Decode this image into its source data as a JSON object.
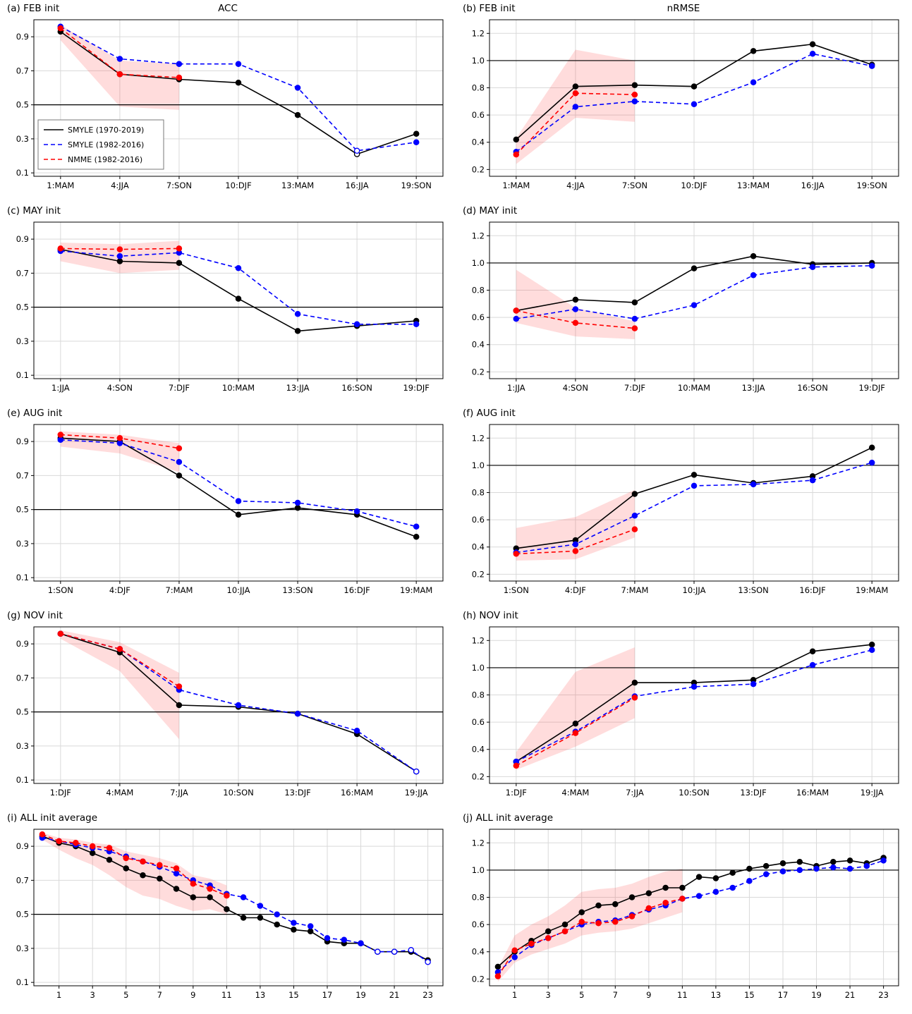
{
  "figure": {
    "col_titles": [
      "ACC",
      "nRMSE"
    ],
    "colors": {
      "smyle_long": "#000000",
      "smyle_short": "#0000ff",
      "nmme": "#ff0000",
      "band": "rgba(255,60,60,0.18)",
      "grid": "#d9d9d9",
      "ref": "#000000"
    },
    "legend": [
      {
        "label": "SMYLE (1970-2019)",
        "color": "#000000",
        "dash": "solid"
      },
      {
        "label": "SMYLE (1982-2016)",
        "color": "#0000ff",
        "dash": "dashed"
      },
      {
        "label": "NMME (1982-2016)",
        "color": "#ff0000",
        "dash": "dashed"
      }
    ]
  },
  "chart_data": [
    {
      "id": "a",
      "label": "(a) FEB init",
      "title": "ACC",
      "type": "line",
      "show_legend": true,
      "categories": [
        "1:MAM",
        "4:JJA",
        "7:SON",
        "10:DJF",
        "13:MAM",
        "16:JJA",
        "19:SON"
      ],
      "ylim": [
        0.08,
        1.0
      ],
      "yticks": [
        0.1,
        0.3,
        0.5,
        0.7,
        0.9
      ],
      "ref_line": 0.5,
      "series": [
        {
          "name": "SMYLE (1970-2019)",
          "color": "#000000",
          "dash": "solid",
          "values": [
            0.93,
            0.68,
            0.65,
            0.63,
            0.44,
            0.21,
            0.33
          ],
          "open": [
            5
          ]
        },
        {
          "name": "SMYLE (1982-2016)",
          "color": "#0000ff",
          "dash": "dashed",
          "values": [
            0.96,
            0.77,
            0.74,
            0.74,
            0.6,
            0.23,
            0.28
          ],
          "open": [
            5
          ]
        },
        {
          "name": "NMME (1982-2016)",
          "color": "#ff0000",
          "dash": "dashed",
          "values": [
            0.95,
            0.68,
            0.66
          ]
        }
      ],
      "band": {
        "upper": [
          0.97,
          0.76,
          0.74
        ],
        "lower": [
          0.88,
          0.49,
          0.47
        ]
      }
    },
    {
      "id": "b",
      "label": "(b) FEB init",
      "title": "nRMSE",
      "type": "line",
      "categories": [
        "1:MAM",
        "4:JJA",
        "7:SON",
        "10:DJF",
        "13:MAM",
        "16:JJA",
        "19:SON"
      ],
      "ylim": [
        0.15,
        1.3
      ],
      "yticks": [
        0.2,
        0.4,
        0.6,
        0.8,
        1.0,
        1.2
      ],
      "ref_line": 1.0,
      "series": [
        {
          "name": "SMYLE (1970-2019)",
          "color": "#000000",
          "dash": "solid",
          "values": [
            0.42,
            0.81,
            0.82,
            0.81,
            1.07,
            1.12,
            0.97
          ]
        },
        {
          "name": "SMYLE (1982-2016)",
          "color": "#0000ff",
          "dash": "dashed",
          "values": [
            0.33,
            0.66,
            0.7,
            0.68,
            0.84,
            1.05,
            0.96
          ]
        },
        {
          "name": "NMME (1982-2016)",
          "color": "#ff0000",
          "dash": "dashed",
          "values": [
            0.31,
            0.76,
            0.75
          ]
        }
      ],
      "band": {
        "upper": [
          0.43,
          1.08,
          1.0
        ],
        "lower": [
          0.24,
          0.58,
          0.55
        ]
      }
    },
    {
      "id": "c",
      "label": "(c) MAY init",
      "type": "line",
      "categories": [
        "1:JJA",
        "4:SON",
        "7:DJF",
        "10:MAM",
        "13:JJA",
        "16:SON",
        "19:DJF"
      ],
      "ylim": [
        0.08,
        1.0
      ],
      "yticks": [
        0.1,
        0.3,
        0.5,
        0.7,
        0.9
      ],
      "ref_line": 0.5,
      "series": [
        {
          "name": "SMYLE (1970-2019)",
          "color": "#000000",
          "dash": "solid",
          "values": [
            0.84,
            0.77,
            0.76,
            0.55,
            0.36,
            0.39,
            0.42
          ]
        },
        {
          "name": "SMYLE (1982-2016)",
          "color": "#0000ff",
          "dash": "dashed",
          "values": [
            0.83,
            0.8,
            0.82,
            0.73,
            0.46,
            0.4,
            0.4
          ]
        },
        {
          "name": "NMME (1982-2016)",
          "color": "#ff0000",
          "dash": "dashed",
          "values": [
            0.845,
            0.84,
            0.845
          ]
        }
      ],
      "band": {
        "upper": [
          0.88,
          0.87,
          0.89
        ],
        "lower": [
          0.77,
          0.7,
          0.72
        ]
      }
    },
    {
      "id": "d",
      "label": "(d) MAY init",
      "type": "line",
      "categories": [
        "1:JJA",
        "4:SON",
        "7:DJF",
        "10:MAM",
        "13:JJA",
        "16:SON",
        "19:DJF"
      ],
      "ylim": [
        0.15,
        1.3
      ],
      "yticks": [
        0.2,
        0.4,
        0.6,
        0.8,
        1.0,
        1.2
      ],
      "ref_line": 1.0,
      "series": [
        {
          "name": "SMYLE (1970-2019)",
          "color": "#000000",
          "dash": "solid",
          "values": [
            0.65,
            0.73,
            0.71,
            0.96,
            1.05,
            0.99,
            1.0
          ]
        },
        {
          "name": "SMYLE (1982-2016)",
          "color": "#0000ff",
          "dash": "dashed",
          "values": [
            0.59,
            0.66,
            0.59,
            0.69,
            0.91,
            0.97,
            0.98
          ]
        },
        {
          "name": "NMME (1982-2016)",
          "color": "#ff0000",
          "dash": "dashed",
          "values": [
            0.65,
            0.56,
            0.52
          ]
        }
      ],
      "band": {
        "upper": [
          0.95,
          0.67,
          0.57
        ],
        "lower": [
          0.56,
          0.46,
          0.44
        ]
      }
    },
    {
      "id": "e",
      "label": "(e) AUG init",
      "type": "line",
      "categories": [
        "1:SON",
        "4:DJF",
        "7:MAM",
        "10:JJA",
        "13:SON",
        "16:DJF",
        "19:MAM"
      ],
      "ylim": [
        0.08,
        1.0
      ],
      "yticks": [
        0.1,
        0.3,
        0.5,
        0.7,
        0.9
      ],
      "ref_line": 0.5,
      "series": [
        {
          "name": "SMYLE (1970-2019)",
          "color": "#000000",
          "dash": "solid",
          "values": [
            0.92,
            0.9,
            0.7,
            0.47,
            0.51,
            0.47,
            0.34
          ]
        },
        {
          "name": "SMYLE (1982-2016)",
          "color": "#0000ff",
          "dash": "dashed",
          "values": [
            0.91,
            0.89,
            0.78,
            0.55,
            0.54,
            0.49,
            0.4
          ]
        },
        {
          "name": "NMME (1982-2016)",
          "color": "#ff0000",
          "dash": "dashed",
          "values": [
            0.94,
            0.92,
            0.86
          ]
        }
      ],
      "band": {
        "upper": [
          0.96,
          0.94,
          0.89
        ],
        "lower": [
          0.87,
          0.83,
          0.72
        ]
      }
    },
    {
      "id": "f",
      "label": "(f) AUG init",
      "type": "line",
      "categories": [
        "1:SON",
        "4:DJF",
        "7:MAM",
        "10:JJA",
        "13:SON",
        "16:DJF",
        "19:MAM"
      ],
      "ylim": [
        0.15,
        1.3
      ],
      "yticks": [
        0.2,
        0.4,
        0.6,
        0.8,
        1.0,
        1.2
      ],
      "ref_line": 1.0,
      "series": [
        {
          "name": "SMYLE (1970-2019)",
          "color": "#000000",
          "dash": "solid",
          "values": [
            0.39,
            0.45,
            0.79,
            0.93,
            0.87,
            0.92,
            1.13
          ]
        },
        {
          "name": "SMYLE (1982-2016)",
          "color": "#0000ff",
          "dash": "dashed",
          "values": [
            0.36,
            0.42,
            0.63,
            0.85,
            0.86,
            0.89,
            1.02
          ]
        },
        {
          "name": "NMME (1982-2016)",
          "color": "#ff0000",
          "dash": "dashed",
          "values": [
            0.35,
            0.37,
            0.53
          ]
        }
      ],
      "band": {
        "upper": [
          0.54,
          0.62,
          0.82
        ],
        "lower": [
          0.3,
          0.31,
          0.47
        ]
      }
    },
    {
      "id": "g",
      "label": "(g) NOV init",
      "type": "line",
      "categories": [
        "1:DJF",
        "4:MAM",
        "7:JJA",
        "10:SON",
        "13:DJF",
        "16:MAM",
        "19:JJA"
      ],
      "ylim": [
        0.08,
        1.0
      ],
      "yticks": [
        0.1,
        0.3,
        0.5,
        0.7,
        0.9
      ],
      "ref_line": 0.5,
      "series": [
        {
          "name": "SMYLE (1970-2019)",
          "color": "#000000",
          "dash": "solid",
          "values": [
            0.96,
            0.85,
            0.54,
            0.53,
            0.49,
            0.37,
            0.15
          ],
          "open": [
            6
          ]
        },
        {
          "name": "SMYLE (1982-2016)",
          "color": "#0000ff",
          "dash": "dashed",
          "values": [
            0.96,
            0.87,
            0.63,
            0.54,
            0.49,
            0.39,
            0.15
          ],
          "open": [
            6
          ]
        },
        {
          "name": "NMME (1982-2016)",
          "color": "#ff0000",
          "dash": "dashed",
          "values": [
            0.96,
            0.87,
            0.65
          ]
        }
      ],
      "band": {
        "upper": [
          0.98,
          0.91,
          0.73
        ],
        "lower": [
          0.93,
          0.74,
          0.34
        ]
      }
    },
    {
      "id": "h",
      "label": "(h) NOV init",
      "type": "line",
      "categories": [
        "1:DJF",
        "4:MAM",
        "7:JJA",
        "10:SON",
        "13:DJF",
        "16:MAM",
        "19:JJA"
      ],
      "ylim": [
        0.15,
        1.3
      ],
      "yticks": [
        0.2,
        0.4,
        0.6,
        0.8,
        1.0,
        1.2
      ],
      "ref_line": 1.0,
      "series": [
        {
          "name": "SMYLE (1970-2019)",
          "color": "#000000",
          "dash": "solid",
          "values": [
            0.31,
            0.59,
            0.89,
            0.89,
            0.91,
            1.12,
            1.17
          ]
        },
        {
          "name": "SMYLE (1982-2016)",
          "color": "#0000ff",
          "dash": "dashed",
          "values": [
            0.31,
            0.53,
            0.79,
            0.86,
            0.88,
            1.02,
            1.13
          ]
        },
        {
          "name": "NMME (1982-2016)",
          "color": "#ff0000",
          "dash": "dashed",
          "values": [
            0.28,
            0.52,
            0.78
          ]
        }
      ],
      "band": {
        "upper": [
          0.38,
          0.97,
          1.15
        ],
        "lower": [
          0.25,
          0.42,
          0.63
        ]
      }
    },
    {
      "id": "i",
      "label": "(i) ALL init average",
      "type": "line",
      "x": [
        0,
        1,
        2,
        3,
        4,
        5,
        6,
        7,
        8,
        9,
        10,
        11,
        12,
        13,
        14,
        15,
        16,
        17,
        18,
        19,
        20,
        21,
        22,
        23
      ],
      "xlim": [
        -0.5,
        23.9
      ],
      "xticks": [
        1,
        3,
        5,
        7,
        9,
        11,
        13,
        15,
        17,
        19,
        21,
        23
      ],
      "ylim": [
        0.08,
        1.0
      ],
      "yticks": [
        0.1,
        0.3,
        0.5,
        0.7,
        0.9
      ],
      "ref_line": 0.5,
      "series": [
        {
          "name": "SMYLE (1970-2019)",
          "color": "#000000",
          "dash": "solid",
          "values": [
            0.96,
            0.92,
            0.9,
            0.86,
            0.82,
            0.77,
            0.73,
            0.71,
            0.65,
            0.6,
            0.6,
            0.53,
            0.48,
            0.48,
            0.44,
            0.41,
            0.4,
            0.34,
            0.33,
            0.33,
            0.28,
            0.28,
            0.28,
            0.23
          ]
        },
        {
          "name": "SMYLE (1982-2016)",
          "color": "#0000ff",
          "dash": "dashed",
          "values": [
            0.95,
            0.93,
            0.91,
            0.89,
            0.87,
            0.84,
            0.81,
            0.78,
            0.74,
            0.7,
            0.67,
            0.62,
            0.6,
            0.55,
            0.5,
            0.45,
            0.43,
            0.36,
            0.35,
            0.33,
            0.28,
            0.28,
            0.29,
            0.22
          ],
          "open": [
            20,
            21,
            22,
            23
          ]
        },
        {
          "name": "NMME (1982-2016)",
          "color": "#ff0000",
          "dash": "dashed",
          "values": [
            0.97,
            0.93,
            0.92,
            0.9,
            0.89,
            0.83,
            0.81,
            0.79,
            0.77,
            0.68,
            0.65,
            0.61
          ]
        }
      ],
      "band": {
        "upper": [
          0.98,
          0.95,
          0.94,
          0.92,
          0.91,
          0.87,
          0.85,
          0.83,
          0.8,
          0.73,
          0.71,
          0.67
        ],
        "lower": [
          0.94,
          0.88,
          0.83,
          0.79,
          0.73,
          0.66,
          0.61,
          0.59,
          0.55,
          0.52,
          0.53,
          0.5
        ]
      }
    },
    {
      "id": "j",
      "label": "(j) ALL init average",
      "type": "line",
      "x": [
        0,
        1,
        2,
        3,
        4,
        5,
        6,
        7,
        8,
        9,
        10,
        11,
        12,
        13,
        14,
        15,
        16,
        17,
        18,
        19,
        20,
        21,
        22,
        23
      ],
      "xlim": [
        -0.5,
        23.9
      ],
      "xticks": [
        1,
        3,
        5,
        7,
        9,
        11,
        13,
        15,
        17,
        19,
        21,
        23
      ],
      "ylim": [
        0.15,
        1.3
      ],
      "yticks": [
        0.2,
        0.4,
        0.6,
        0.8,
        1.0,
        1.2
      ],
      "ref_line": 1.0,
      "series": [
        {
          "name": "SMYLE (1970-2019)",
          "color": "#000000",
          "dash": "solid",
          "values": [
            0.29,
            0.4,
            0.48,
            0.55,
            0.6,
            0.69,
            0.74,
            0.75,
            0.8,
            0.83,
            0.87,
            0.87,
            0.95,
            0.94,
            0.98,
            1.01,
            1.03,
            1.05,
            1.06,
            1.03,
            1.06,
            1.07,
            1.05,
            1.09
          ]
        },
        {
          "name": "SMYLE (1982-2016)",
          "color": "#0000ff",
          "dash": "dashed",
          "values": [
            0.25,
            0.36,
            0.45,
            0.5,
            0.55,
            0.6,
            0.62,
            0.63,
            0.67,
            0.71,
            0.74,
            0.79,
            0.81,
            0.84,
            0.87,
            0.92,
            0.97,
            0.99,
            1.0,
            1.01,
            1.02,
            1.01,
            1.03,
            1.07
          ]
        },
        {
          "name": "NMME (1982-2016)",
          "color": "#ff0000",
          "dash": "dashed",
          "values": [
            0.22,
            0.41,
            0.46,
            0.5,
            0.55,
            0.62,
            0.61,
            0.62,
            0.66,
            0.72,
            0.76,
            0.79
          ]
        }
      ],
      "band": {
        "upper": [
          0.28,
          0.52,
          0.6,
          0.66,
          0.74,
          0.84,
          0.86,
          0.87,
          0.9,
          0.95,
          0.99,
          1.01
        ],
        "lower": [
          0.18,
          0.32,
          0.38,
          0.42,
          0.46,
          0.52,
          0.54,
          0.55,
          0.57,
          0.61,
          0.65,
          0.69
        ]
      }
    }
  ]
}
